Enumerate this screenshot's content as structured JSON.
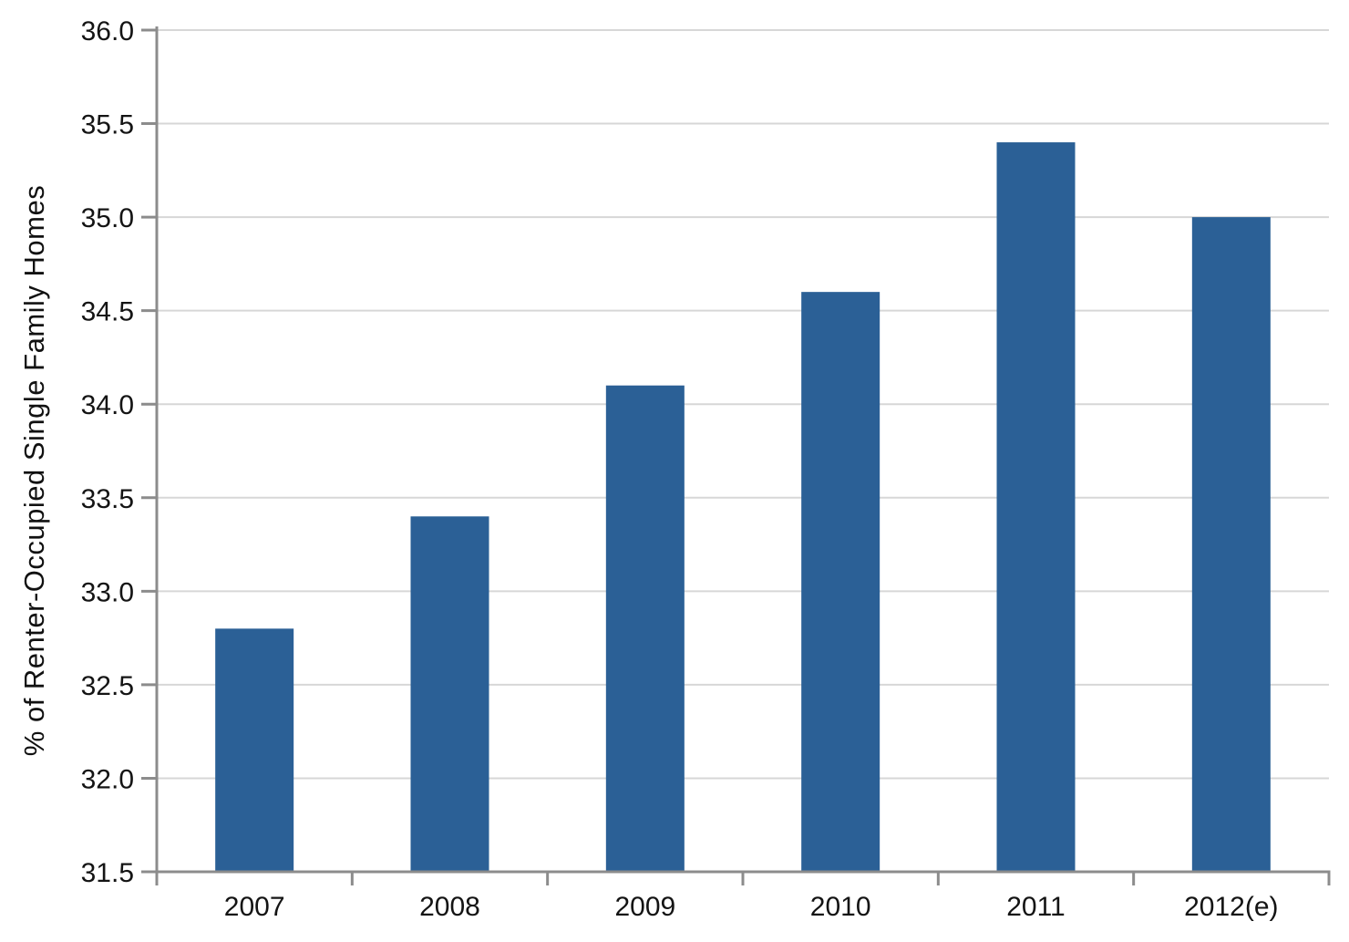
{
  "chart_data": {
    "type": "bar",
    "categories": [
      "2007",
      "2008",
      "2009",
      "2010",
      "2011",
      "2012(e)"
    ],
    "values": [
      32.8,
      33.4,
      34.1,
      34.6,
      35.4,
      35.0
    ],
    "title": "",
    "xlabel": "",
    "ylabel": "% of Renter-Occupied Single Family Homes",
    "ylim": [
      31.5,
      36.0
    ],
    "ytick_step": 0.5,
    "yticks": [
      "31.5",
      "32.0",
      "32.5",
      "33.0",
      "33.5",
      "34.0",
      "34.5",
      "35.0",
      "35.5",
      "36.0"
    ],
    "grid": true,
    "legend": "none",
    "bar_color": "#2B6096",
    "grid_color": "#D7D7D7",
    "axis_color": "#8C8C8C",
    "text_color": "#141414"
  }
}
